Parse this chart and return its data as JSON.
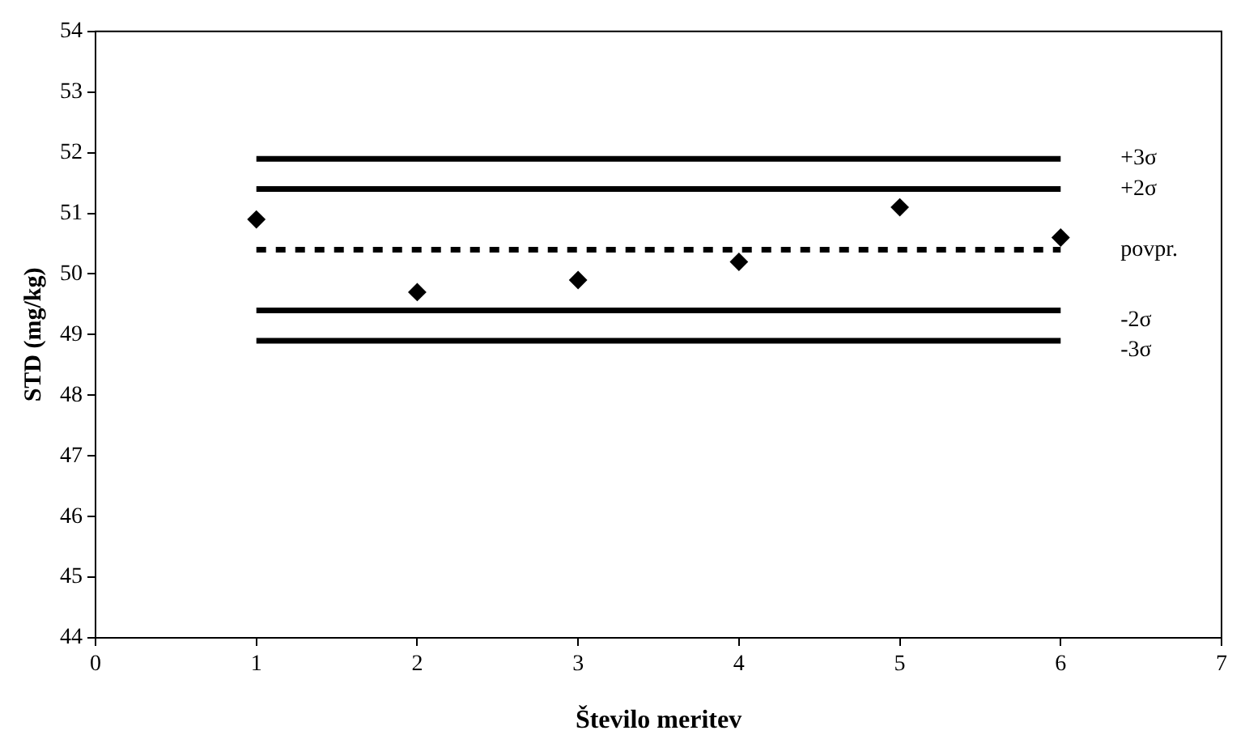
{
  "chart_data": {
    "type": "scatter",
    "xlabel": "Število meritev",
    "ylabel": "STD (mg/kg)",
    "xlim": [
      0,
      7
    ],
    "xticks": [
      0,
      1,
      2,
      3,
      4,
      5,
      6,
      7
    ],
    "ylim": [
      44,
      54
    ],
    "yticks": [
      44,
      45,
      46,
      47,
      48,
      49,
      50,
      51,
      52,
      53,
      54
    ],
    "grid": false,
    "legend": false,
    "series": [
      {
        "type": "line",
        "name": "+3σ",
        "color": "#000000",
        "line_style": "solid",
        "marker": "none",
        "x": [
          1,
          6
        ],
        "values": [
          51.9,
          51.9
        ]
      },
      {
        "type": "line",
        "name": "+2σ",
        "color": "#000000",
        "line_style": "solid",
        "marker": "none",
        "x": [
          1,
          6
        ],
        "values": [
          51.4,
          51.4
        ]
      },
      {
        "type": "line",
        "name": "povpr.",
        "color": "#000000",
        "line_style": "dashed",
        "marker": "none",
        "x": [
          1,
          6
        ],
        "values": [
          50.4,
          50.4
        ]
      },
      {
        "type": "line",
        "name": "-2σ",
        "color": "#000000",
        "line_style": "solid",
        "marker": "none",
        "x": [
          1,
          6
        ],
        "values": [
          49.4,
          49.4
        ]
      },
      {
        "type": "line",
        "name": "-3σ",
        "color": "#000000",
        "line_style": "solid",
        "marker": "none",
        "x": [
          1,
          6
        ],
        "values": [
          48.9,
          48.9
        ]
      },
      {
        "color": "#000000",
        "marker": "diamond",
        "x": [
          1,
          2,
          3,
          4,
          5,
          6
        ],
        "values": [
          50.9,
          49.7,
          49.9,
          50.2,
          51.1,
          50.6
        ]
      }
    ]
  }
}
